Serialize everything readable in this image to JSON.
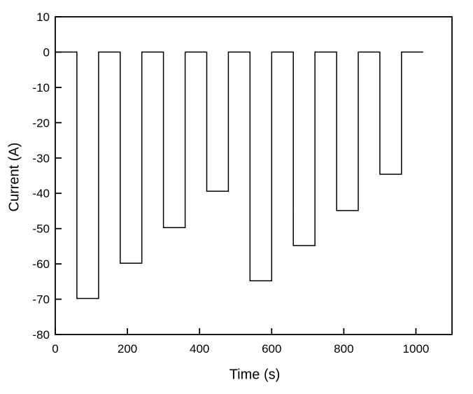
{
  "figure": {
    "background": "#ffffff",
    "frame_color": "#000000",
    "text_color": "#000000"
  },
  "chart_data": {
    "type": "line",
    "subtype": "step-pulse",
    "title": "",
    "xlabel": "Time (s)",
    "ylabel": "Current (A)",
    "xlim": [
      0,
      1100
    ],
    "ylim": [
      -80,
      10
    ],
    "x_ticks": [
      0,
      200,
      400,
      600,
      800,
      1000
    ],
    "y_ticks": [
      10,
      0,
      -10,
      -20,
      -30,
      -40,
      -50,
      -60,
      -70,
      -80
    ],
    "grid": false,
    "legend": null,
    "line_color": "#000000",
    "baseline_A": 0,
    "t_start": 0,
    "t_end": 1020,
    "pulses": [
      {
        "t_start": 60,
        "t_end": 120,
        "current_A": -69.8
      },
      {
        "t_start": 180,
        "t_end": 240,
        "current_A": -59.8
      },
      {
        "t_start": 300,
        "t_end": 360,
        "current_A": -49.7
      },
      {
        "t_start": 420,
        "t_end": 480,
        "current_A": -39.4
      },
      {
        "t_start": 540,
        "t_end": 600,
        "current_A": -64.8
      },
      {
        "t_start": 660,
        "t_end": 720,
        "current_A": -54.8
      },
      {
        "t_start": 780,
        "t_end": 840,
        "current_A": -44.9
      },
      {
        "t_start": 900,
        "t_end": 960,
        "current_A": -34.6
      }
    ]
  }
}
